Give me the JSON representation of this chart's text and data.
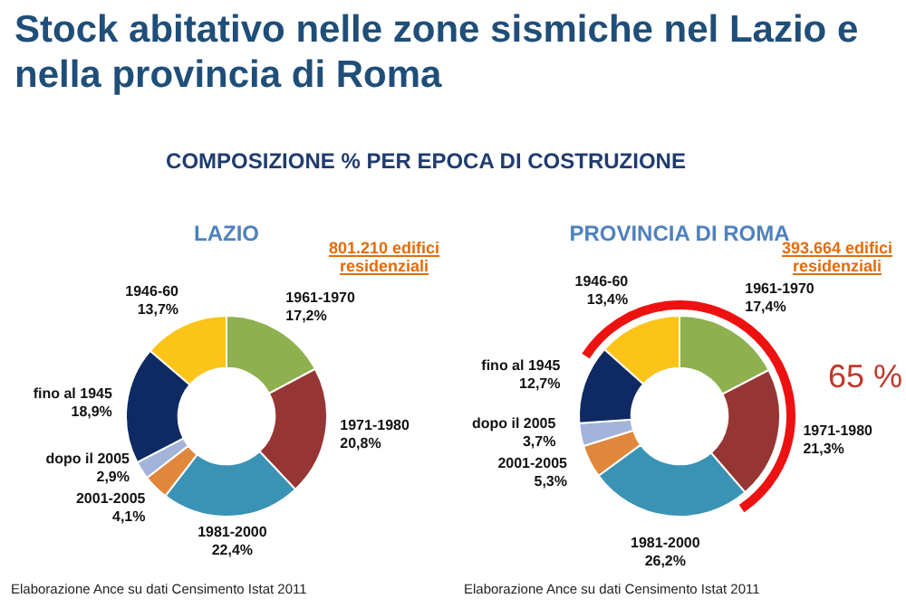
{
  "chart_data": [
    {
      "type": "other",
      "title": "Stock abitativo nelle zone sismiche nel Lazio e nella provincia di Roma",
      "subtitle": "COMPOSIZIONE % PER EPOCA DI COSTRUZIONE"
    },
    {
      "type": "donut",
      "title": "LAZIO",
      "categories": [
        "1961-1970",
        "1971-1980",
        "1981-2000",
        "2001-2005",
        "dopo il 2005",
        "fino al 1945",
        "1946-60"
      ],
      "values": [
        17.2,
        20.8,
        22.4,
        4.1,
        2.9,
        18.9,
        13.7
      ],
      "value_labels": [
        "17,2%",
        "20,8%",
        "22,4%",
        "4,1%",
        "2,9%",
        "18,9%",
        "13,7%"
      ],
      "colors": [
        "#8eb04f",
        "#963634",
        "#3a93b5",
        "#e0873c",
        "#a3b4db",
        "#0f2a63",
        "#fcc419"
      ],
      "annotations": [
        "801.210 edifici residenziali",
        "Elaborazione Ance su dati Censimento Istat 2011"
      ]
    },
    {
      "type": "donut",
      "title": "PROVINCIA DI ROMA",
      "categories": [
        "1961-1970",
        "1971-1980",
        "1981-2000",
        "2001-2005",
        "dopo il 2005",
        "fino al 1945",
        "1946-60"
      ],
      "values": [
        17.4,
        21.3,
        26.2,
        5.3,
        3.7,
        12.7,
        13.4
      ],
      "value_labels": [
        "17,4%",
        "21,3%",
        "26,2%",
        "5,3%",
        "3,7%",
        "12,7%",
        "13,4%"
      ],
      "colors": [
        "#8eb04f",
        "#963634",
        "#3a93b5",
        "#e0873c",
        "#a3b4db",
        "#0f2a63",
        "#fcc419"
      ],
      "annotations": [
        "393.664 edifici residenziali",
        "Elaborazione Ance su dati Censimento Istat 2011",
        "65 %"
      ]
    }
  ]
}
